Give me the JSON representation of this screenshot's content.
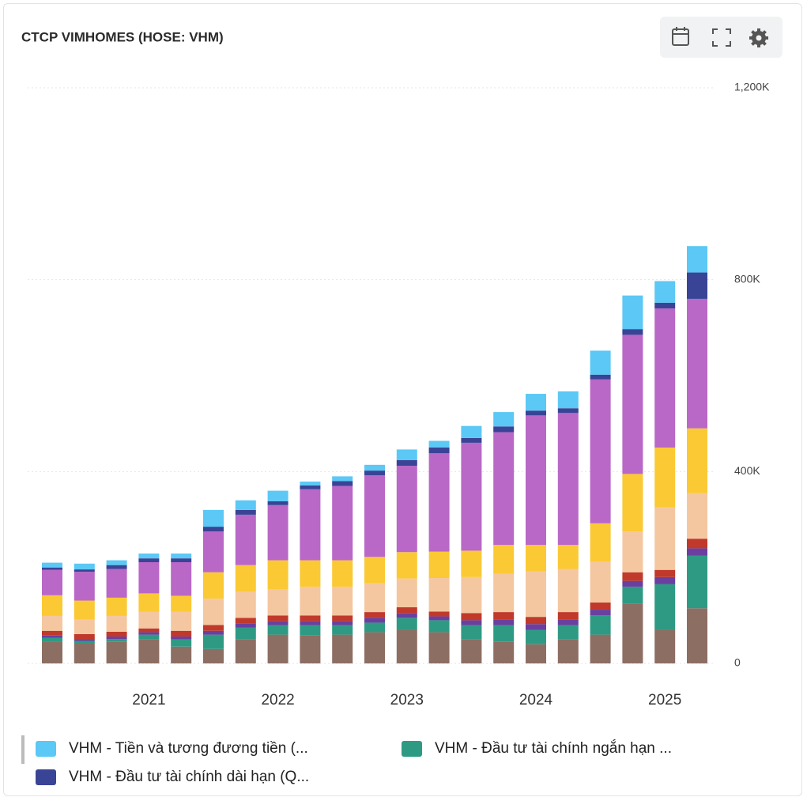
{
  "chart_data": {
    "type": "bar",
    "stacked": true,
    "title": "CTCP VIMHOMES (HOSE: VHM)",
    "categories": [
      null,
      null,
      null,
      "2021",
      null,
      null,
      null,
      "2022",
      null,
      null,
      null,
      "2023",
      null,
      null,
      null,
      "2024",
      null,
      null,
      null,
      "2025",
      null
    ],
    "ylim": [
      0,
      1200
    ],
    "yticks": [
      0,
      {
        "value": 400,
        "label": "400K"
      },
      {
        "value": 800,
        "label": "800K"
      },
      {
        "value": 1200,
        "label": "1,200K"
      }
    ],
    "grid": true,
    "y_axis_side": "right",
    "series": [
      {
        "color": "#8d6e63",
        "values": [
          46,
          42,
          45,
          50,
          35,
          30,
          50,
          60,
          58,
          60,
          65,
          70,
          65,
          50,
          45,
          40,
          50,
          60,
          125,
          70,
          115
        ]
      },
      {
        "name": "VHM - Đầu tư tài chính ngắn hạn ...",
        "color": "#2e9a84",
        "values": [
          7,
          5,
          6,
          10,
          15,
          30,
          25,
          20,
          22,
          20,
          20,
          25,
          25,
          30,
          35,
          30,
          30,
          40,
          35,
          95,
          110
        ]
      },
      {
        "color": "#6a3fa0",
        "values": [
          5,
          4,
          5,
          5,
          6,
          8,
          8,
          8,
          8,
          8,
          10,
          10,
          8,
          10,
          12,
          12,
          12,
          12,
          12,
          15,
          15
        ]
      },
      {
        "color": "#c0392b",
        "values": [
          10,
          10,
          10,
          8,
          12,
          12,
          12,
          12,
          12,
          12,
          12,
          12,
          10,
          15,
          15,
          15,
          15,
          15,
          18,
          15,
          20
        ]
      },
      {
        "color": "#f4c7a1",
        "values": [
          31,
          30,
          33,
          35,
          40,
          55,
          55,
          55,
          60,
          60,
          60,
          60,
          70,
          75,
          80,
          95,
          90,
          85,
          85,
          130,
          95
        ]
      },
      {
        "color": "#fbc934",
        "values": [
          43,
          40,
          38,
          38,
          33,
          55,
          55,
          60,
          55,
          55,
          55,
          55,
          55,
          55,
          60,
          55,
          50,
          80,
          120,
          125,
          135
        ]
      },
      {
        "color": "#b968c7",
        "values": [
          53,
          60,
          60,
          65,
          70,
          85,
          105,
          115,
          148,
          155,
          170,
          180,
          205,
          225,
          235,
          270,
          275,
          300,
          290,
          290,
          270
        ]
      },
      {
        "name": "VHM - Đầu tư tài chính dài hạn (Q...",
        "color": "#3a4496",
        "values": [
          5,
          5,
          8,
          8,
          8,
          10,
          10,
          8,
          8,
          10,
          10,
          12,
          12,
          10,
          12,
          10,
          10,
          10,
          12,
          12,
          55
        ]
      },
      {
        "name": "VHM - Tiền và tương đương tiền (...",
        "color": "#5bc8f5",
        "values": [
          10,
          12,
          10,
          10,
          10,
          35,
          20,
          22,
          8,
          10,
          12,
          22,
          14,
          25,
          30,
          35,
          35,
          50,
          70,
          45,
          55
        ]
      }
    ]
  }
}
